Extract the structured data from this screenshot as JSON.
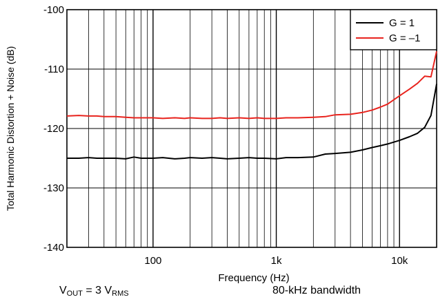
{
  "captions": {
    "vout_v": "V",
    "vout_sub": "OUT",
    "vout_eq": " = 3 V",
    "vout_rms": "RMS",
    "bandwidth": "80-kHz bandwidth"
  },
  "chart_data": {
    "type": "line",
    "title": "",
    "xlabel": "Frequency (Hz)",
    "ylabel": "Total Harmonic Distortion + Noise (dB)",
    "xscale": "log",
    "xlim": [
      20,
      20000
    ],
    "ylim": [
      -140,
      -100
    ],
    "yticks": [
      -140,
      -130,
      -120,
      -110,
      -100
    ],
    "ytick_labels": [
      "-140",
      "-130",
      "-120",
      "-110",
      "-100"
    ],
    "xticks": [
      100,
      1000,
      10000
    ],
    "xtick_labels": [
      "100",
      "1k",
      "10k"
    ],
    "grid": true,
    "legend": "top-right",
    "series": [
      {
        "name": "G = 1",
        "color": "#000000",
        "x": [
          20,
          25,
          30,
          35,
          40,
          50,
          60,
          70,
          80,
          100,
          120,
          150,
          180,
          200,
          250,
          300,
          350,
          400,
          500,
          600,
          700,
          800,
          1000,
          1200,
          1500,
          2000,
          2500,
          3000,
          4000,
          5000,
          6000,
          7000,
          8000,
          10000,
          12000,
          14000,
          16000,
          18000,
          20000
        ],
        "y": [
          -125.0,
          -125.0,
          -124.9,
          -125.0,
          -125.0,
          -125.0,
          -125.1,
          -124.8,
          -125.0,
          -125.0,
          -124.9,
          -125.1,
          -125.0,
          -124.9,
          -125.0,
          -124.9,
          -125.0,
          -125.1,
          -125.0,
          -124.9,
          -125.0,
          -125.0,
          -125.1,
          -124.9,
          -124.9,
          -124.8,
          -124.3,
          -124.2,
          -124.0,
          -123.6,
          -123.2,
          -122.9,
          -122.6,
          -122.0,
          -121.4,
          -120.8,
          -119.8,
          -117.8,
          -112.5
        ]
      },
      {
        "name": "G = –1",
        "color": "#e8231d",
        "x": [
          20,
          25,
          30,
          35,
          40,
          50,
          60,
          70,
          80,
          100,
          120,
          150,
          180,
          200,
          250,
          300,
          350,
          400,
          500,
          600,
          700,
          800,
          1000,
          1200,
          1500,
          2000,
          2500,
          3000,
          4000,
          5000,
          6000,
          7000,
          8000,
          10000,
          12000,
          14000,
          16000,
          18000,
          20000
        ],
        "y": [
          -117.9,
          -117.8,
          -117.9,
          -117.9,
          -118.0,
          -118.0,
          -118.1,
          -118.2,
          -118.2,
          -118.2,
          -118.3,
          -118.2,
          -118.3,
          -118.2,
          -118.3,
          -118.3,
          -118.2,
          -118.3,
          -118.2,
          -118.3,
          -118.2,
          -118.3,
          -118.3,
          -118.2,
          -118.2,
          -118.1,
          -118.0,
          -117.7,
          -117.6,
          -117.3,
          -116.9,
          -116.4,
          -115.9,
          -114.5,
          -113.4,
          -112.4,
          -111.2,
          -111.3,
          -107.0
        ]
      }
    ]
  }
}
